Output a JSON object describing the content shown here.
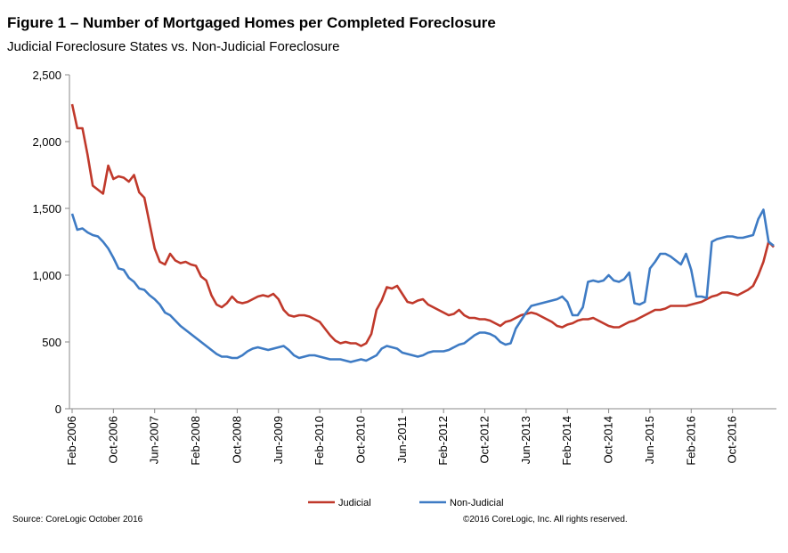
{
  "chart_data": {
    "type": "line",
    "title": "Figure 1 – Number of Mortgaged Homes per Completed Foreclosure",
    "subtitle": "Judicial Foreclosure States vs. Non-Judicial Foreclosure",
    "xlabel": "",
    "ylabel": "",
    "ylim": [
      0,
      2500
    ],
    "y_ticks": [
      "0",
      "500",
      "1,000",
      "1,500",
      "2,000",
      "2,500"
    ],
    "y_tick_values": [
      0,
      500,
      1000,
      1500,
      2000,
      2500
    ],
    "x_tick_labels": [
      "Feb-2006",
      "Oct-2006",
      "Jun-2007",
      "Feb-2008",
      "Oct-2008",
      "Jun-2009",
      "Feb-2010",
      "Oct-2010",
      "Jun-2011",
      "Feb-2012",
      "Oct-2012",
      "Jun-2013",
      "Feb-2014",
      "Oct-2014",
      "Jun-2015",
      "Feb-2016",
      "Oct-2016"
    ],
    "x_start": "Feb-2006",
    "x_end": "Oct-2016",
    "grid": false,
    "legend_position": "bottom",
    "series": [
      {
        "name": "Judicial",
        "color": "#C0392B",
        "values": [
          2280,
          2100,
          2100,
          1900,
          1670,
          1640,
          1610,
          1820,
          1720,
          1740,
          1730,
          1700,
          1750,
          1620,
          1580,
          1390,
          1200,
          1100,
          1080,
          1160,
          1110,
          1090,
          1100,
          1080,
          1070,
          990,
          960,
          850,
          780,
          760,
          790,
          840,
          800,
          790,
          800,
          820,
          840,
          850,
          840,
          860,
          820,
          740,
          700,
          690,
          700,
          700,
          690,
          670,
          650,
          600,
          550,
          510,
          490,
          500,
          490,
          490,
          470,
          490,
          560,
          740,
          810,
          910,
          900,
          920,
          860,
          800,
          790,
          810,
          820,
          780,
          760,
          740,
          720,
          700,
          710,
          740,
          700,
          680,
          680,
          670,
          670,
          660,
          640,
          620,
          650,
          660,
          680,
          700,
          710,
          720,
          710,
          690,
          670,
          650,
          620,
          610,
          630,
          640,
          660,
          670,
          670,
          680,
          660,
          640,
          620,
          610,
          610,
          630,
          650,
          660,
          680,
          700,
          720,
          740,
          740,
          750,
          770,
          770,
          770,
          770,
          780,
          790,
          800,
          820,
          840,
          850,
          870,
          870,
          860,
          850,
          870,
          890,
          920,
          1000,
          1100,
          1250,
          1210
        ]
      },
      {
        "name": "Non-Judicial",
        "color": "#3E7BC4",
        "values": [
          1460,
          1340,
          1350,
          1320,
          1300,
          1290,
          1250,
          1200,
          1130,
          1050,
          1040,
          980,
          950,
          900,
          890,
          850,
          820,
          780,
          720,
          700,
          660,
          620,
          590,
          560,
          530,
          500,
          470,
          440,
          410,
          390,
          390,
          380,
          380,
          400,
          430,
          450,
          460,
          450,
          440,
          450,
          460,
          470,
          440,
          400,
          380,
          390,
          400,
          400,
          390,
          380,
          370,
          370,
          370,
          360,
          350,
          360,
          370,
          360,
          380,
          400,
          450,
          470,
          460,
          450,
          420,
          410,
          400,
          390,
          400,
          420,
          430,
          430,
          430,
          440,
          460,
          480,
          490,
          520,
          550,
          570,
          570,
          560,
          540,
          500,
          480,
          490,
          600,
          660,
          720,
          770,
          780,
          790,
          800,
          810,
          820,
          840,
          800,
          700,
          700,
          760,
          950,
          960,
          950,
          960,
          1000,
          960,
          950,
          970,
          1020,
          790,
          780,
          800,
          1050,
          1100,
          1160,
          1160,
          1140,
          1110,
          1080,
          1160,
          1040,
          840,
          840,
          830,
          1250,
          1270,
          1280,
          1290,
          1290,
          1280,
          1280,
          1290,
          1300,
          1420,
          1490,
          1250,
          1220
        ]
      }
    ]
  },
  "footer": {
    "source": "Source: CoreLogic October 2016",
    "copyright": "©2016 CoreLogic, Inc. All rights reserved."
  }
}
